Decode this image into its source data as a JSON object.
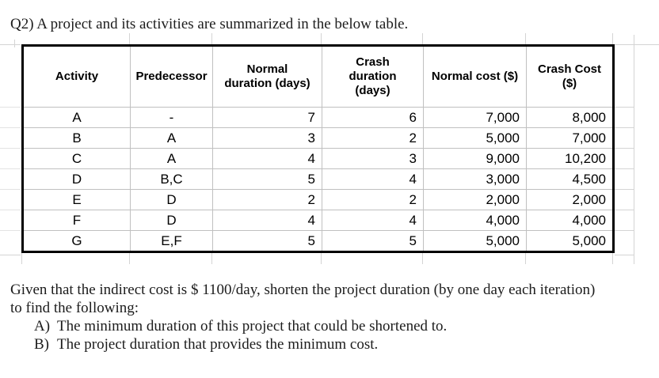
{
  "title": "Q2) A project and its activities are summarized in the below table.",
  "table": {
    "headers": [
      "Activity",
      "Predecessor",
      "Normal\nduration (days)",
      "Crash\nduration\n(days)",
      "Normal cost ($)",
      "Crash Cost\n($)"
    ],
    "rows": [
      [
        "A",
        "-",
        "7",
        "6",
        "7,000",
        "8,000"
      ],
      [
        "B",
        "A",
        "3",
        "2",
        "5,000",
        "7,000"
      ],
      [
        "C",
        "A",
        "4",
        "3",
        "9,000",
        "10,200"
      ],
      [
        "D",
        "B,C",
        "5",
        "4",
        "3,000",
        "4,500"
      ],
      [
        "E",
        "D",
        "2",
        "2",
        "2,000",
        "2,000"
      ],
      [
        "F",
        "D",
        "4",
        "4",
        "4,000",
        "4,000"
      ],
      [
        "G",
        "E,F",
        "5",
        "5",
        "5,000",
        "5,000"
      ]
    ]
  },
  "question": {
    "intro_line1": "Given that the indirect cost is $ 1100/day, shorten the project duration (by one day each iteration)",
    "intro_line2": "to find the following:",
    "items": [
      {
        "label": "A)",
        "text": "The minimum duration of this project that could be shortened to."
      },
      {
        "label": "B)",
        "text": "The project duration that provides the minimum cost."
      }
    ]
  }
}
